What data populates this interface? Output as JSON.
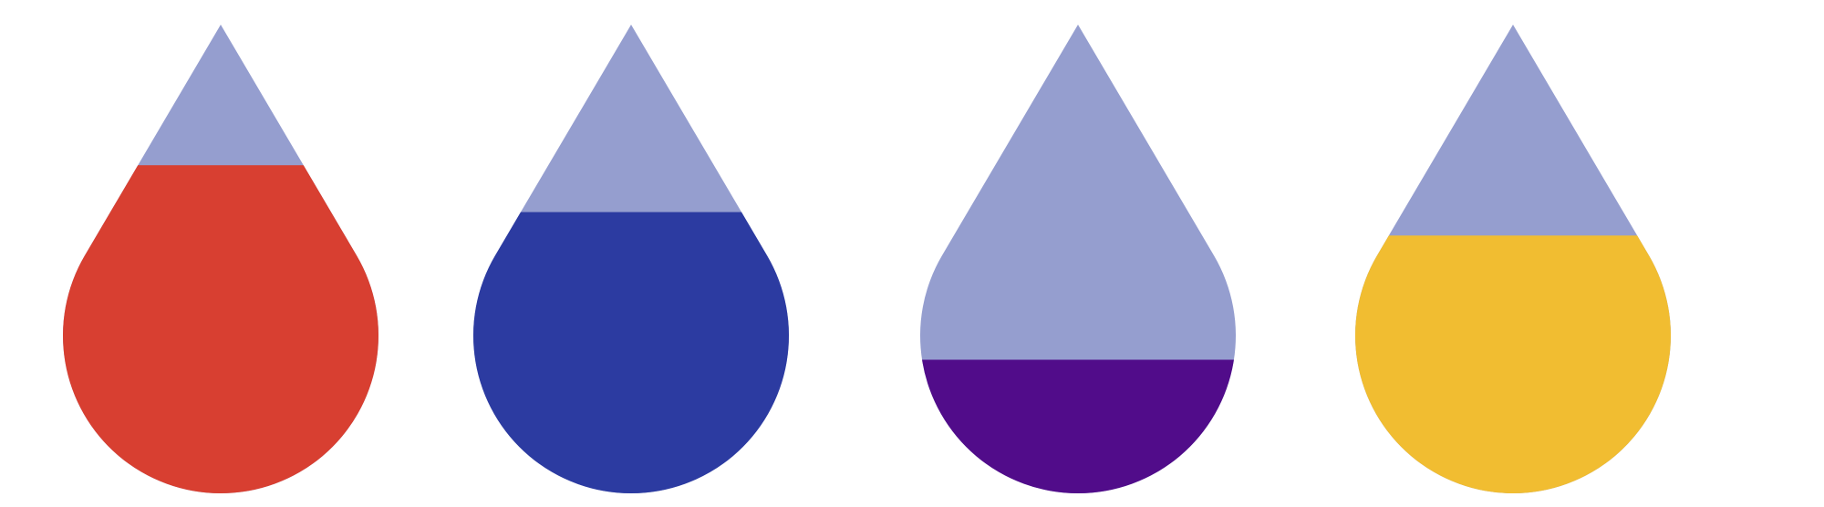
{
  "chart_data": {
    "type": "pictogram-fill",
    "title": "",
    "empty_color": "#959ecf",
    "series": [
      {
        "fill_fraction": 0.7,
        "color": "#d83f31"
      },
      {
        "fill_fraction": 0.6,
        "color": "#2c3ba1"
      },
      {
        "fill_fraction": 0.285,
        "color": "#510c8a"
      },
      {
        "fill_fraction": 0.55,
        "color": "#f1bd31"
      }
    ]
  }
}
